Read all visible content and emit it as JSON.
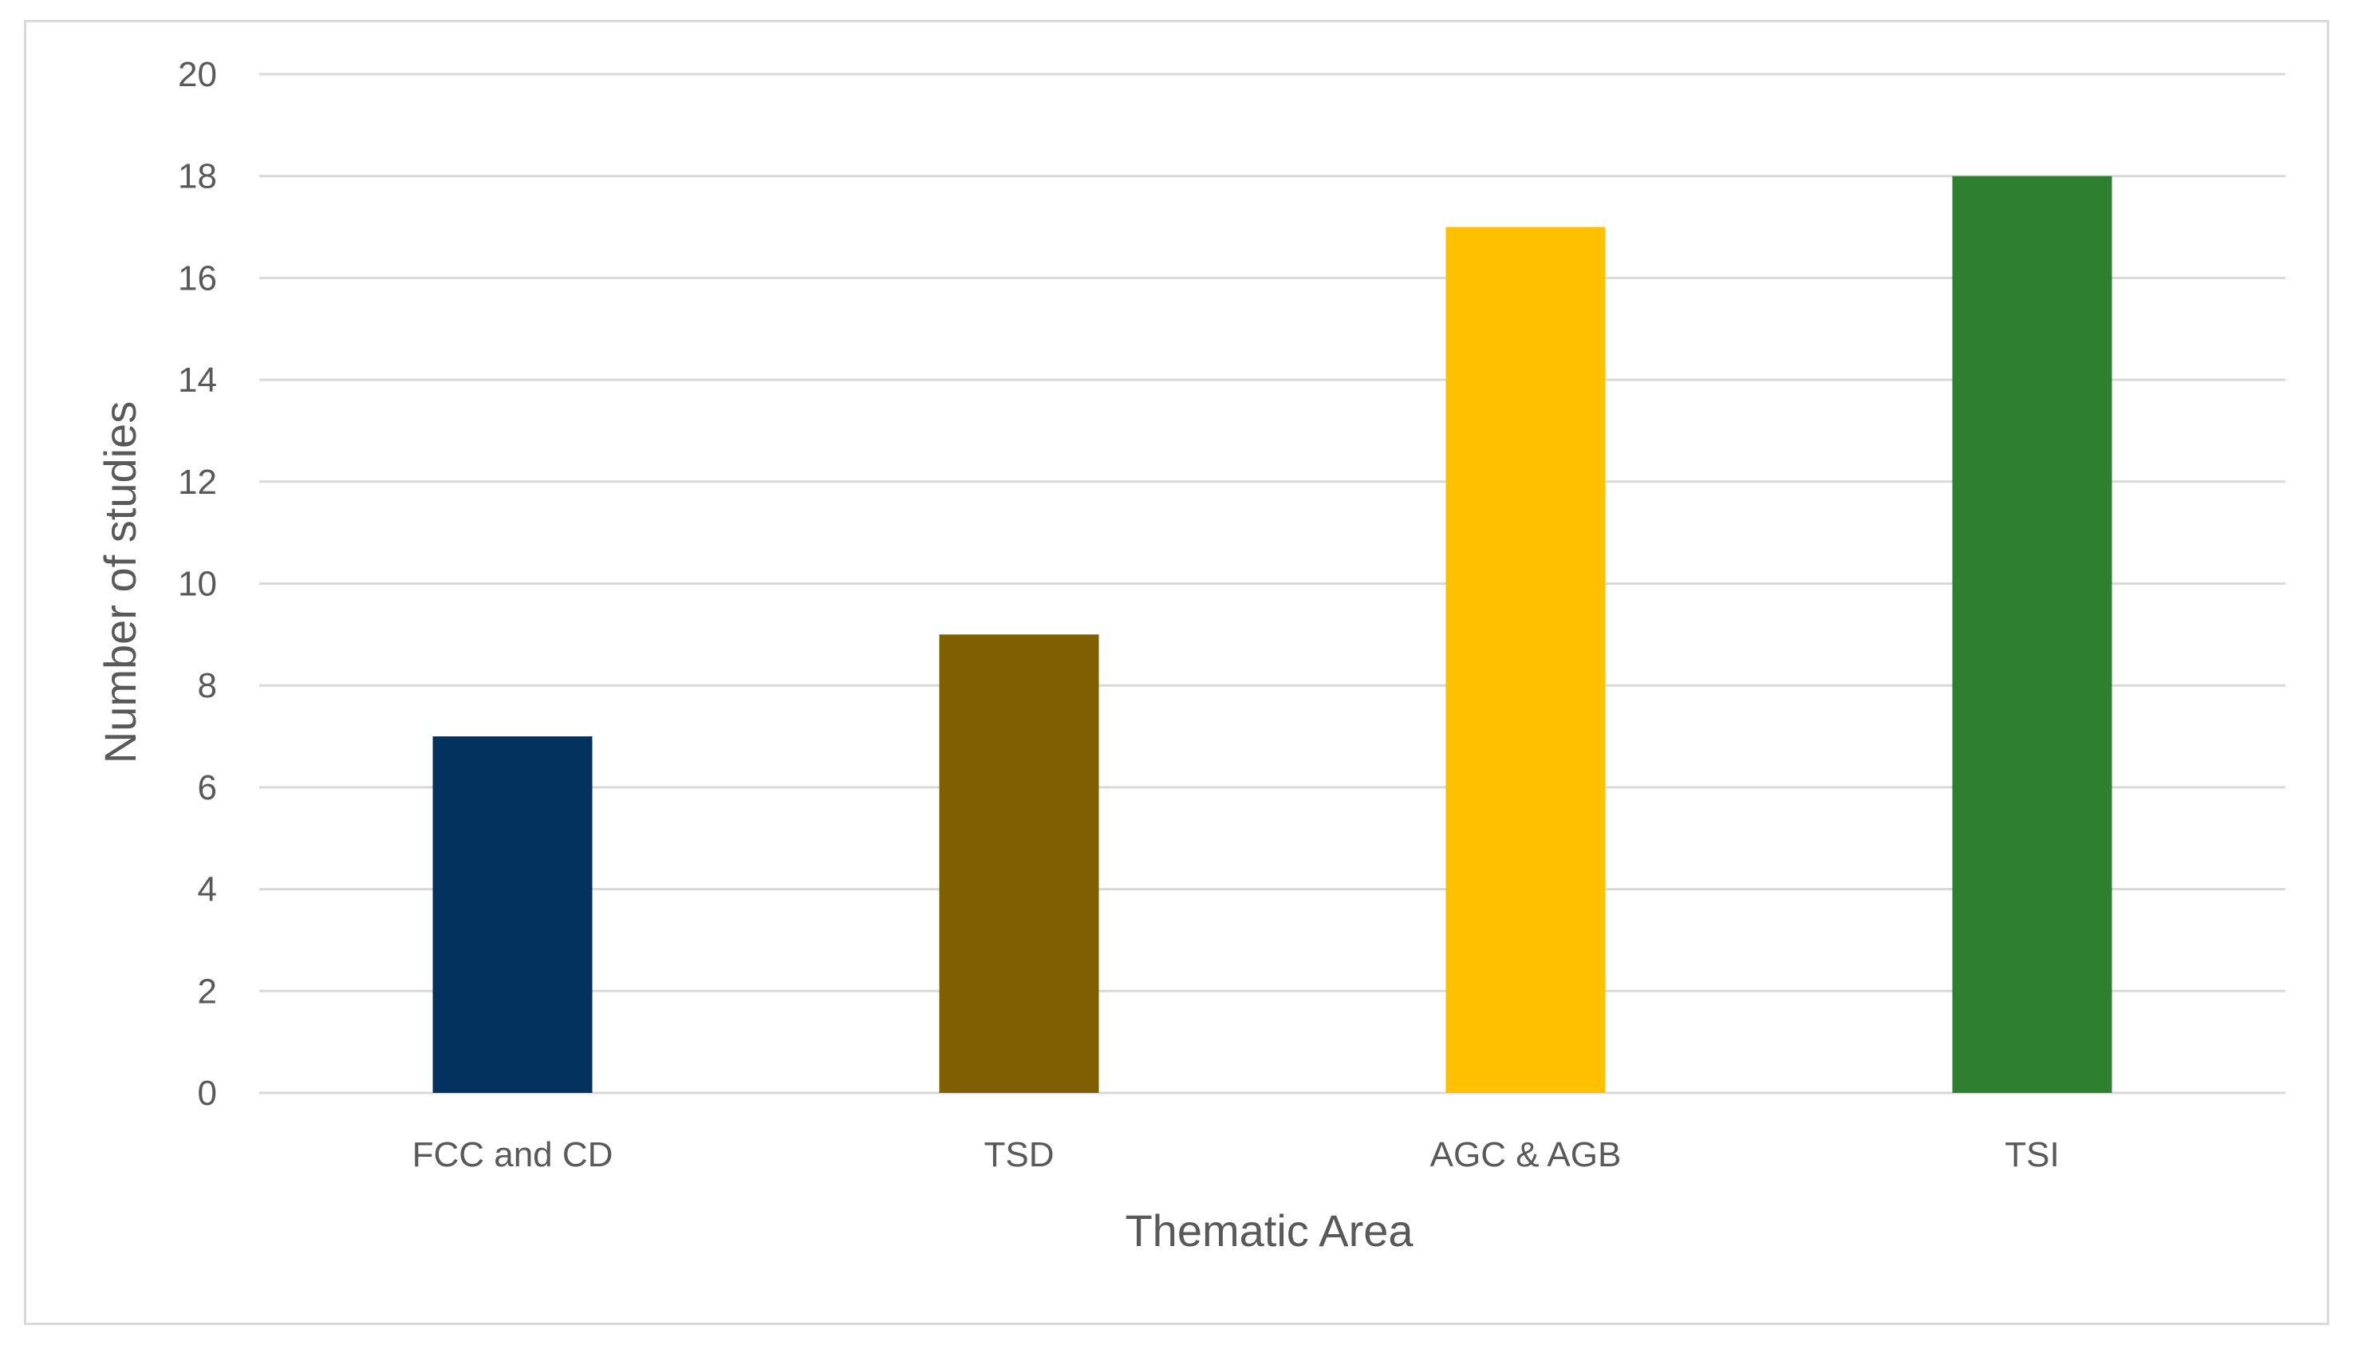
{
  "chart_data": {
    "type": "bar",
    "title": "",
    "xlabel": "Thematic Area",
    "ylabel": "Number of studies",
    "categories": [
      "FCC and CD",
      "TSD",
      "AGC & AGB",
      "TSI"
    ],
    "values": [
      7,
      9,
      17,
      18
    ],
    "bar_colors": [
      "#03325F",
      "#7F5F00",
      "#FFC000",
      "#2E8030"
    ],
    "ylim": [
      0,
      20
    ],
    "yticks": [
      0,
      2,
      4,
      6,
      8,
      10,
      12,
      14,
      16,
      18,
      20
    ],
    "grid": true,
    "legend": "none",
    "gridline_color": "#d9d9d9",
    "text_color": "#595959"
  }
}
